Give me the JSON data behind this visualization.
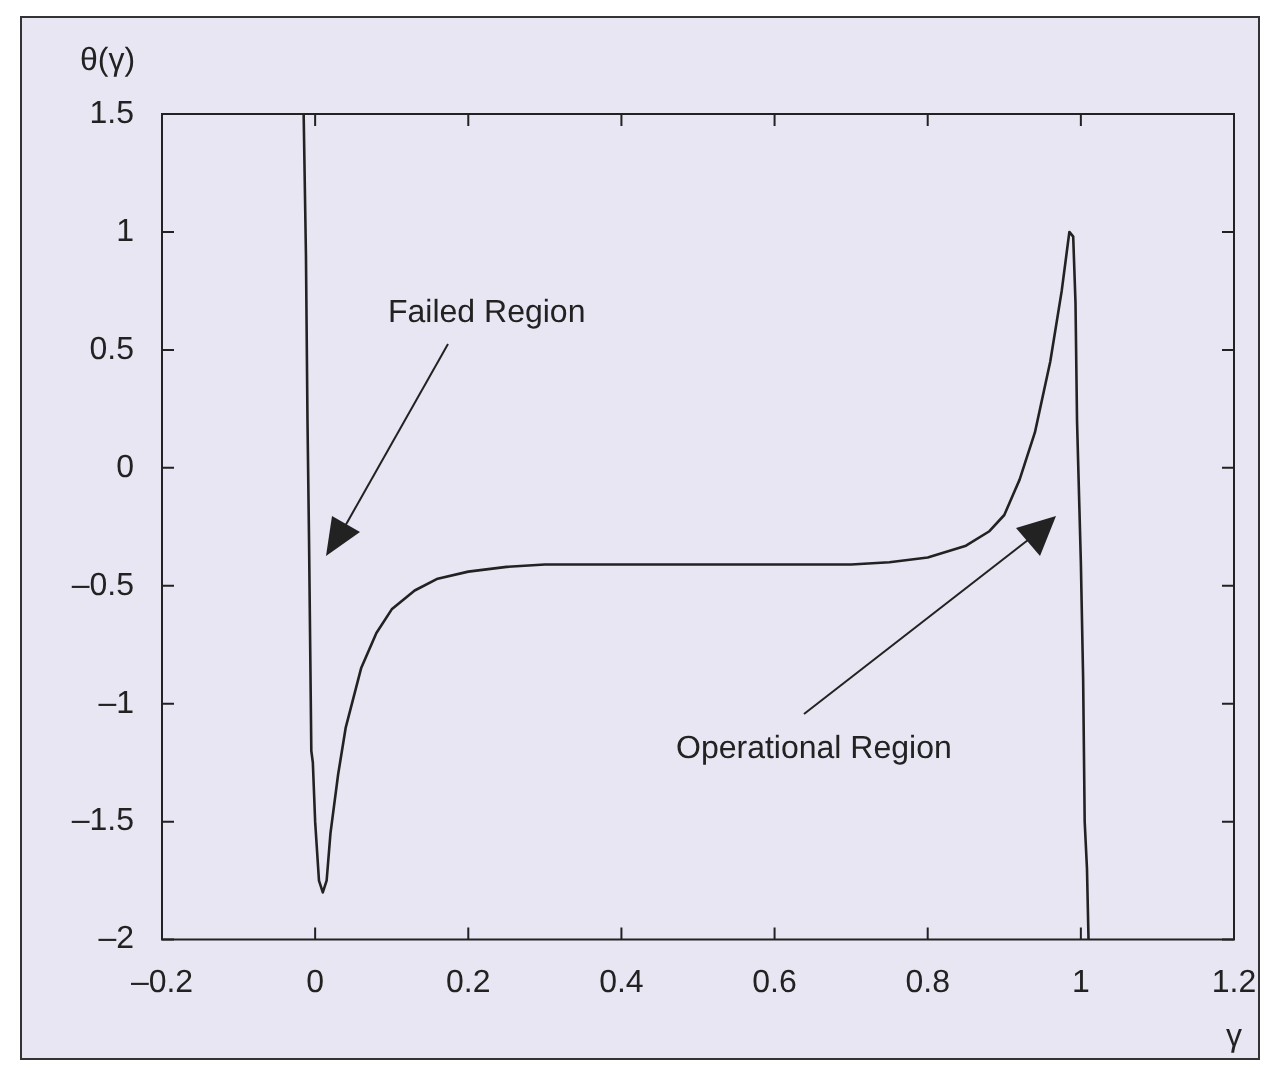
{
  "chart_data": {
    "type": "line",
    "xlabel": "γ",
    "ylabel": "θ(γ)",
    "grid": false,
    "legend": false,
    "marker": "none",
    "line_style": "solid",
    "xlim": [
      -0.2,
      1.2
    ],
    "ylim": [
      -2,
      1.5
    ],
    "xticks": [
      {
        "value": -0.2,
        "label": "–0.2"
      },
      0,
      0.2,
      0.4,
      0.6,
      0.8,
      1,
      1.2
    ],
    "yticks": [
      {
        "value": -2,
        "label": "–2"
      },
      {
        "value": -1.5,
        "label": "–1.5"
      },
      {
        "value": -1,
        "label": "–1"
      },
      {
        "value": -0.5,
        "label": "–0.5"
      },
      0,
      0.5,
      1,
      1.5
    ],
    "series": [
      {
        "color": "#222222",
        "x": [
          -0.015,
          -0.012,
          -0.01,
          -0.008,
          -0.005,
          -0.003,
          0,
          0.005,
          0.01,
          0.015,
          0.02,
          0.03,
          0.04,
          0.06,
          0.08,
          0.1,
          0.13,
          0.16,
          0.2,
          0.25,
          0.3,
          0.5,
          0.7,
          0.75,
          0.8,
          0.85,
          0.88,
          0.9,
          0.92,
          0.94,
          0.96,
          0.975,
          0.985,
          0.99,
          0.993,
          0.995,
          1.0,
          1.003,
          1.005,
          1.008,
          1.01
        ],
        "values": [
          1.5,
          0.9,
          0.2,
          -0.3,
          -1.2,
          -1.25,
          -1.5,
          -1.75,
          -1.8,
          -1.75,
          -1.55,
          -1.3,
          -1.1,
          -0.85,
          -0.7,
          -0.6,
          -0.52,
          -0.47,
          -0.44,
          -0.42,
          -0.41,
          -0.41,
          -0.41,
          -0.4,
          -0.38,
          -0.33,
          -0.27,
          -0.2,
          -0.05,
          0.15,
          0.45,
          0.75,
          1.0,
          0.98,
          0.7,
          0.2,
          -0.4,
          -0.9,
          -1.5,
          -1.7,
          -2
        ]
      }
    ],
    "annotations": [
      "Failed Region",
      "Operational Region"
    ]
  }
}
